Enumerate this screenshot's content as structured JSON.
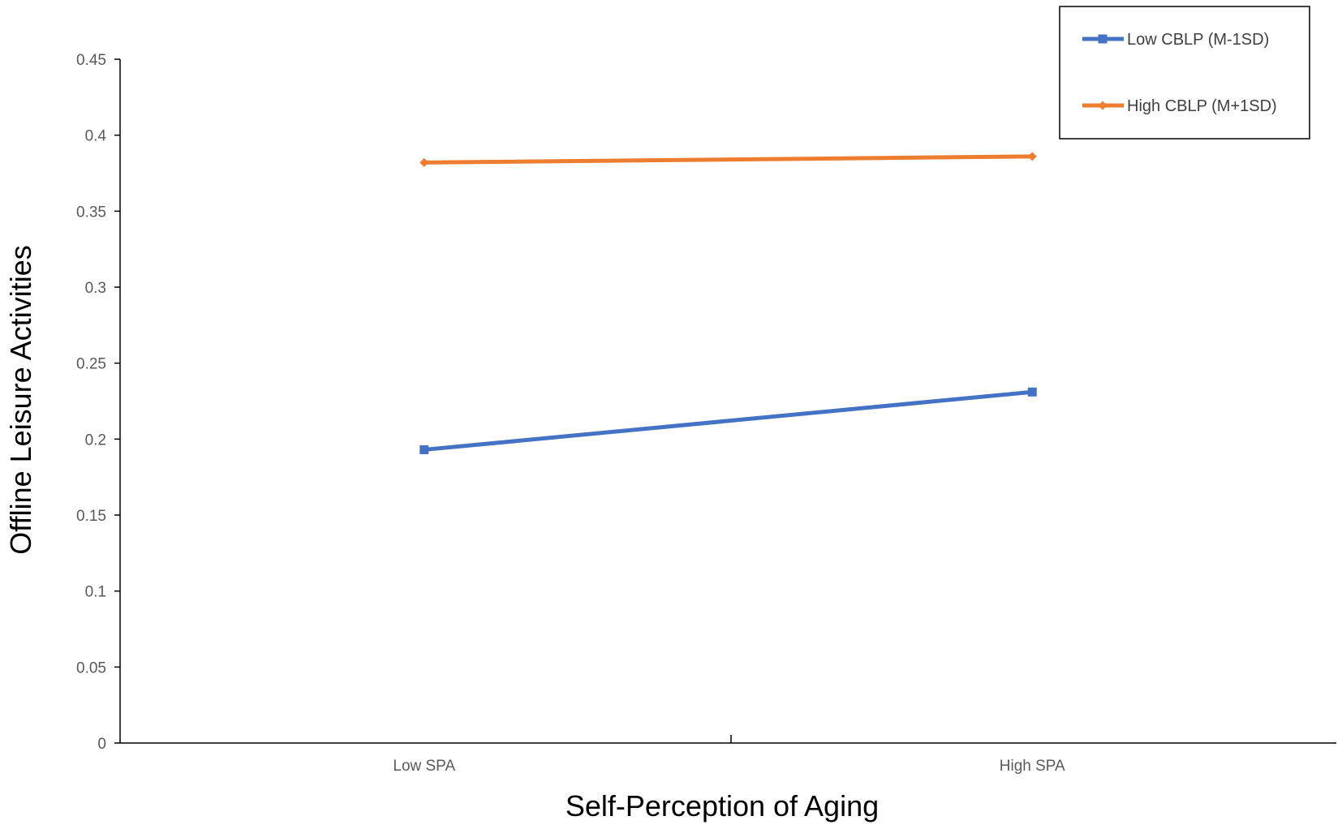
{
  "chart_data": {
    "type": "line",
    "title": "",
    "xlabel": "Self-Perception of Aging",
    "ylabel": "Offline Leisure Activities",
    "categories": [
      "Low SPA",
      "High SPA"
    ],
    "ylim": [
      0,
      0.45
    ],
    "yticks": [
      "0",
      "0.05",
      "0.1",
      "0.15",
      "0.2",
      "0.25",
      "0.3",
      "0.35",
      "0.4",
      "0.45"
    ],
    "grid": false,
    "legend_position": "top-right",
    "series": [
      {
        "name": "Low CBLP (M-1SD)",
        "values": [
          0.193,
          0.231
        ],
        "color": "#4472C4",
        "marker": "square"
      },
      {
        "name": "High CBLP (M+1SD)",
        "values": [
          0.382,
          0.386
        ],
        "color": "#ED7D31",
        "marker": "diamond"
      }
    ]
  }
}
